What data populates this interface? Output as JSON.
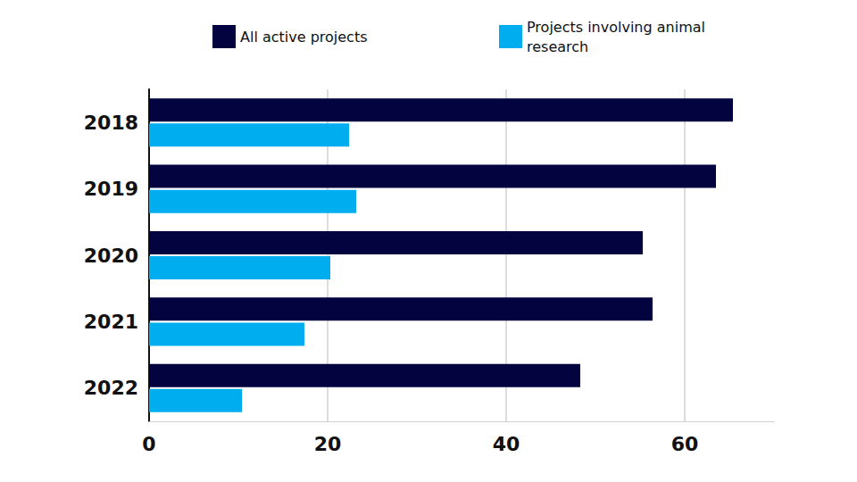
{
  "chart_data": {
    "type": "bar",
    "orientation": "horizontal",
    "categories": [
      "2018",
      "2019",
      "2020",
      "2021",
      "2022"
    ],
    "series": [
      {
        "name": "All active projects",
        "color": "#03033f",
        "values": [
          65.4,
          63.5,
          55.3,
          56.4,
          48.3
        ]
      },
      {
        "name": "Projects involving animal research",
        "color": "#00aeef",
        "values": [
          22.4,
          23.2,
          20.3,
          17.4,
          10.4
        ]
      }
    ],
    "xlim": [
      0,
      70
    ],
    "xticks": [
      0,
      20,
      40,
      60
    ],
    "grid": true,
    "legend": "top"
  }
}
